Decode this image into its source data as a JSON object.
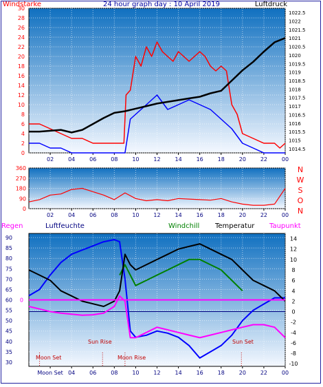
{
  "chart_data": [
    {
      "type": "line",
      "title": "24 hour graph day : 10 April 2019",
      "left_axis_label": "Windstarke",
      "right_axis_label": "Luftdruck",
      "x_ticks": [
        "02",
        "04",
        "06",
        "08",
        "10",
        "12",
        "14",
        "16",
        "18",
        "20",
        "22",
        "00"
      ],
      "y_left": {
        "min": 0,
        "max": 30,
        "ticks": [
          0,
          2,
          4,
          6,
          8,
          10,
          12,
          14,
          16,
          18,
          20,
          22,
          24,
          26,
          28,
          30
        ]
      },
      "y_right": {
        "min": 1014.25,
        "max": 1022.75,
        "ticks": [
          "1014.5",
          "1015",
          "1015.5",
          "1016",
          "1016.5",
          "1017",
          "1017.5",
          "1018",
          "1018.5",
          "1019",
          "1019.5",
          "1020",
          "1020.5",
          "1021",
          "1021.5",
          "1022",
          "1022.5"
        ]
      },
      "series": [
        {
          "color": "#ff0000",
          "x": [
            0,
            1,
            2,
            3,
            4,
            5,
            6,
            7,
            8,
            8.9,
            9.1,
            9.5,
            10,
            10.5,
            11,
            11.5,
            12,
            12.5,
            13,
            13.5,
            14,
            14.5,
            15,
            15.5,
            16,
            16.5,
            17,
            17.5,
            18,
            18.5,
            19,
            19.5,
            20,
            21,
            22,
            23,
            23.5,
            24
          ],
          "y": [
            6,
            6,
            5,
            4,
            3,
            3,
            2,
            2,
            2,
            2,
            12,
            13,
            20,
            18,
            22,
            20,
            23,
            21,
            20,
            19,
            21,
            20,
            19,
            20,
            21,
            20,
            18,
            17,
            18,
            17,
            10,
            8,
            4,
            3,
            2,
            2,
            1,
            2
          ]
        },
        {
          "color": "#0000ff",
          "x": [
            0,
            1,
            2,
            3,
            4,
            5,
            6,
            7,
            8,
            9,
            9.5,
            10,
            11,
            12,
            13,
            14,
            15,
            16,
            17,
            18,
            19,
            20,
            21,
            22,
            23,
            24
          ],
          "y": [
            2,
            2,
            1,
            1,
            0,
            0,
            0,
            0,
            0,
            0,
            7,
            8,
            10,
            12,
            9,
            10,
            11,
            10,
            9,
            7,
            5,
            2,
            1,
            0,
            0,
            0
          ]
        },
        {
          "color": "#000000",
          "x": [
            0,
            1,
            2,
            3,
            4,
            5,
            6,
            7,
            8,
            9,
            10,
            11,
            12,
            13,
            14,
            15,
            16,
            17,
            18,
            19,
            20,
            21,
            22,
            23,
            24
          ],
          "y": [
            1015.5,
            1015.5,
            1015.55,
            1015.6,
            1015.45,
            1015.6,
            1015.95,
            1016.3,
            1016.6,
            1016.7,
            1016.85,
            1017.0,
            1017.15,
            1017.25,
            1017.35,
            1017.45,
            1017.55,
            1017.75,
            1017.9,
            1018.5,
            1019.1,
            1019.6,
            1020.2,
            1020.75,
            1021.0
          ]
        }
      ]
    },
    {
      "type": "line",
      "x_ticks": [
        "02",
        "04",
        "06",
        "08",
        "10",
        "12",
        "14",
        "16",
        "18",
        "20",
        "22",
        "00"
      ],
      "y_left": {
        "min": 0,
        "max": 360,
        "ticks": [
          0,
          90,
          180,
          270,
          360
        ]
      },
      "compass": [
        "N",
        "W",
        "S",
        "O",
        "N"
      ],
      "series": [
        {
          "color": "#ff0000",
          "x": [
            0,
            1,
            2,
            3,
            4,
            5,
            6,
            7,
            8,
            9,
            10,
            11,
            12,
            13,
            14,
            15,
            16,
            17,
            18,
            19,
            20,
            21,
            22,
            23,
            24
          ],
          "y": [
            60,
            80,
            120,
            130,
            170,
            180,
            150,
            120,
            80,
            140,
            90,
            70,
            80,
            70,
            90,
            85,
            80,
            75,
            90,
            60,
            40,
            30,
            30,
            40,
            180
          ]
        }
      ]
    },
    {
      "type": "line",
      "legend": [
        "Regen",
        "Luftfeuchte",
        "Windchill",
        "Temperatur",
        "Taupunkt"
      ],
      "x_ticks": [
        "02",
        "04",
        "06",
        "08",
        "10",
        "12",
        "14",
        "16",
        "18",
        "20",
        "22",
        "00"
      ],
      "x_first_tick": "Moon Set",
      "y_left": {
        "min": 28,
        "max": 92,
        "ticks": [
          30,
          35,
          40,
          45,
          50,
          55,
          60,
          65,
          70,
          75,
          80,
          85,
          90
        ]
      },
      "y_right": {
        "min": -10.5,
        "max": 15,
        "ticks": [
          -10,
          -8,
          -6,
          -4,
          -2,
          0,
          2,
          4,
          6,
          8,
          10,
          12,
          14
        ]
      },
      "left_marker": "0",
      "events": [
        {
          "label": "Moon Set",
          "hour": 1.0
        },
        {
          "label": "Sun Rise",
          "hour": 6.9
        },
        {
          "label": "Moon Rise",
          "hour": 9.0
        },
        {
          "label": "Sun Set",
          "hour": 19.9
        }
      ],
      "series": [
        {
          "name": "Luftfeuchte",
          "color": "#0000ff",
          "axis": "left",
          "x": [
            0,
            1,
            2,
            3,
            4,
            5,
            6,
            7,
            8,
            8.5,
            9,
            9.5,
            10,
            11,
            12,
            13,
            14,
            15,
            16,
            17,
            18,
            19,
            20,
            21,
            22,
            23,
            24
          ],
          "y": [
            62,
            65,
            72,
            78,
            82,
            84,
            86,
            88,
            89,
            88,
            70,
            45,
            42,
            43,
            45,
            44,
            42,
            38,
            32,
            35,
            38,
            43,
            50,
            55,
            58,
            61,
            61
          ]
        },
        {
          "name": "Windchill",
          "color": "#008000",
          "axis": "right",
          "x": [
            8.5,
            9,
            9.5,
            10,
            11,
            12,
            13,
            14,
            15,
            16,
            17,
            18,
            19,
            20
          ],
          "y": [
            7,
            9,
            7,
            5,
            6,
            7,
            8,
            9,
            10,
            10,
            9,
            8,
            6,
            4
          ]
        },
        {
          "name": "Temperatur",
          "color": "#000000",
          "axis": "right",
          "x": [
            0,
            1,
            2,
            3,
            4,
            5,
            6,
            7,
            8,
            8.5,
            9,
            9.5,
            10,
            11,
            12,
            13,
            14,
            15,
            16,
            17,
            18,
            19,
            20,
            21,
            22,
            23,
            24
          ],
          "y": [
            8,
            7,
            6,
            4,
            3,
            2,
            1.5,
            1,
            2,
            4,
            11,
            9,
            8,
            9,
            10,
            11,
            12,
            12.5,
            13,
            12,
            11,
            10,
            8,
            6,
            5,
            4,
            2
          ]
        },
        {
          "name": "Taupunkt",
          "color": "#ff00ff",
          "axis": "right",
          "x": [
            0,
            1,
            2,
            3,
            4,
            5,
            6,
            7,
            8,
            8.5,
            9,
            9.5,
            10,
            11,
            12,
            13,
            14,
            15,
            16,
            17,
            18,
            19,
            20,
            21,
            22,
            23,
            24
          ],
          "y": [
            1,
            0.5,
            0,
            -0.3,
            -0.5,
            -0.7,
            -0.6,
            -0.3,
            1,
            3,
            2,
            -5,
            -5,
            -4,
            -3,
            -3.5,
            -4,
            -4.5,
            -5,
            -4.5,
            -4,
            -3.5,
            -3,
            -2.5,
            -2.5,
            -3,
            -5
          ]
        },
        {
          "name": "Regen",
          "color": "#ff00ff",
          "axis": "left",
          "x": [
            0,
            24
          ],
          "y": [
            60,
            60
          ]
        }
      ]
    }
  ]
}
